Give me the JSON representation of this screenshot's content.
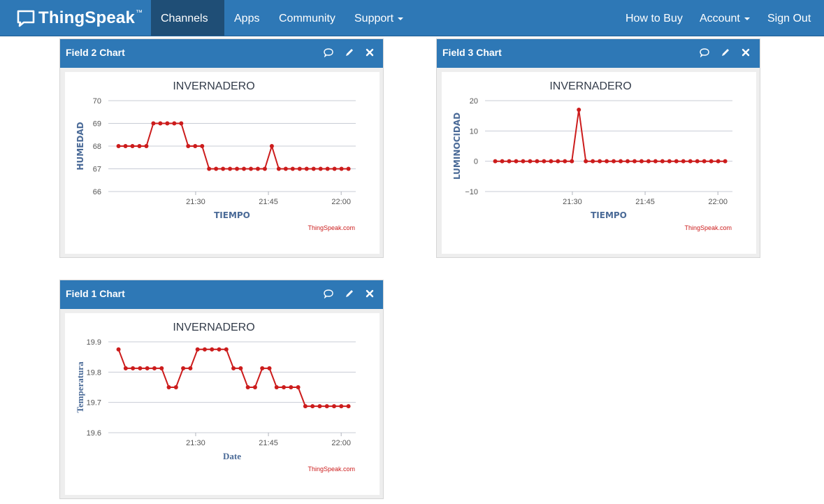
{
  "nav": {
    "brand": "ThingSpeak",
    "trademark": "™",
    "left_items": [
      {
        "label": "Channels",
        "dropdown": true
      },
      {
        "label": "Apps",
        "dropdown": false
      },
      {
        "label": "Community",
        "dropdown": false
      },
      {
        "label": "Support",
        "dropdown": true
      }
    ],
    "right_items": [
      {
        "label": "How to Buy",
        "dropdown": false
      },
      {
        "label": "Account",
        "dropdown": true
      },
      {
        "label": "Sign Out",
        "dropdown": false
      }
    ]
  },
  "colors": {
    "navbar": "#2e78b6",
    "active_nav": "#1f4e76",
    "series": "#cc1c1c",
    "axis_label": "#4a6a97"
  },
  "panels": [
    {
      "id": "field2",
      "title": "Field 2 Chart"
    },
    {
      "id": "field3",
      "title": "Field 3 Chart"
    },
    {
      "id": "field1",
      "title": "Field 1 Chart"
    }
  ],
  "panel_controls": [
    "comment-icon",
    "pencil-icon",
    "close-icon"
  ],
  "chart_data": [
    {
      "id": "field2",
      "type": "line",
      "title": "INVERNADERO",
      "xlabel": "TIEMPO",
      "ylabel": "HUMEDAD",
      "credit": "ThingSpeak.com",
      "xlim": [
        21.2,
        22.05
      ],
      "ylim": [
        66,
        70
      ],
      "yticks": [
        "70",
        "69",
        "68",
        "67",
        "66"
      ],
      "ytick_values": [
        70,
        69,
        68,
        67,
        66
      ],
      "xticks": [
        "21:30",
        "21:45",
        "22:00"
      ],
      "xtick_values": [
        21.5,
        21.75,
        22.0
      ],
      "series": [
        {
          "name": "HUMEDAD",
          "values": [
            68,
            68,
            68,
            68,
            68,
            69,
            69,
            69,
            69,
            69,
            68,
            68,
            68,
            67,
            67,
            67,
            67,
            67,
            67,
            67,
            67,
            67,
            68,
            67,
            67,
            67,
            67,
            67,
            67,
            67,
            67,
            67,
            67,
            67
          ]
        }
      ]
    },
    {
      "id": "field3",
      "type": "line",
      "title": "INVERNADERO",
      "xlabel": "TIEMPO",
      "ylabel": "LUMINOCIDAD",
      "credit": "ThingSpeak.com",
      "xlim": [
        21.2,
        22.05
      ],
      "ylim": [
        -10,
        20
      ],
      "yticks": [
        "20",
        "10",
        "0",
        "−10"
      ],
      "ytick_values": [
        20,
        10,
        0,
        -10
      ],
      "xticks": [
        "21:30",
        "21:45",
        "22:00"
      ],
      "xtick_values": [
        21.5,
        21.75,
        22.0
      ],
      "series": [
        {
          "name": "LUMINOCIDAD",
          "values": [
            0,
            0,
            0,
            0,
            0,
            0,
            0,
            0,
            0,
            0,
            0,
            0,
            17,
            0,
            0,
            0,
            0,
            0,
            0,
            0,
            0,
            0,
            0,
            0,
            0,
            0,
            0,
            0,
            0,
            0,
            0,
            0,
            0,
            0
          ]
        }
      ]
    },
    {
      "id": "field1",
      "type": "line",
      "title": "INVERNADERO",
      "xlabel": "Date",
      "ylabel": "Temperatura",
      "credit": "ThingSpeak.com",
      "xlim": [
        21.2,
        22.05
      ],
      "ylim": [
        19.6,
        19.9
      ],
      "yticks": [
        "19.9",
        "19.8",
        "19.7",
        "19.6"
      ],
      "ytick_values": [
        19.9,
        19.8,
        19.7,
        19.6
      ],
      "xticks": [
        "21:30",
        "21:45",
        "22:00"
      ],
      "xtick_values": [
        21.5,
        21.75,
        22.0
      ],
      "series": [
        {
          "name": "Temperatura",
          "values": [
            19.875,
            19.8125,
            19.8125,
            19.8125,
            19.8125,
            19.8125,
            19.8125,
            19.75,
            19.75,
            19.8125,
            19.8125,
            19.875,
            19.875,
            19.875,
            19.875,
            19.875,
            19.8125,
            19.8125,
            19.75,
            19.75,
            19.8125,
            19.8125,
            19.75,
            19.75,
            19.75,
            19.75,
            19.6875,
            19.6875,
            19.6875,
            19.6875,
            19.6875,
            19.6875,
            19.6875
          ]
        }
      ]
    }
  ]
}
